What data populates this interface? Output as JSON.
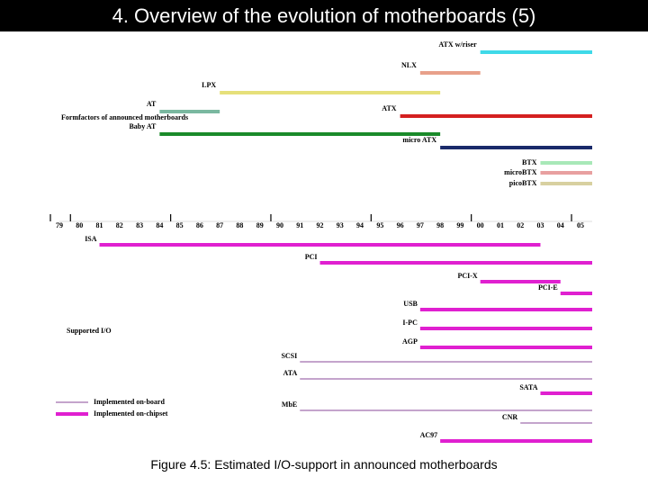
{
  "header": {
    "title": "4. Overview of the evolution of motherboards (5)"
  },
  "formfactors": {
    "heading": "Formfactors of announced motherboards",
    "bars": [
      {
        "label": "ATX w/riser",
        "color": "#3fd9e8",
        "start": 2000
      },
      {
        "label": "NLX",
        "color": "#e8a08a",
        "start": 1997,
        "end": 2000
      },
      {
        "label": "LPX",
        "color": "#e6e07a",
        "start": 1987,
        "end": 1998
      },
      {
        "label": "AT",
        "color": "#7ab8a0",
        "start": 1984,
        "end": 1987
      },
      {
        "label": "ATX",
        "color": "#d42020",
        "start": 1996
      },
      {
        "label": "Baby AT",
        "color": "#1a8a2a",
        "start": 1984,
        "end": 1998
      },
      {
        "label": "micro ATX",
        "color": "#1a2a6a",
        "start": 1998
      },
      {
        "label": "BTX",
        "color": "#a8e8b8",
        "start": 2003
      },
      {
        "label": "microBTX",
        "color": "#e8a0a0",
        "start": 2003
      },
      {
        "label": "picoBTX",
        "color": "#d8d0a0",
        "start": 2003
      }
    ]
  },
  "timeline": {
    "first_year": 1979,
    "labels": [
      "79",
      "80",
      "81",
      "82",
      "83",
      "84",
      "85",
      "86",
      "87",
      "88",
      "89",
      "90",
      "91",
      "92",
      "93",
      "94",
      "95",
      "96",
      "97",
      "98",
      "99",
      "00",
      "01",
      "02",
      "03",
      "04",
      "05"
    ]
  },
  "io": {
    "heading": "Supported I/O",
    "legend": [
      "Implemented on-board",
      "Implemented on-chipset"
    ],
    "bars": [
      {
        "label": "ISA",
        "start": 1981,
        "end": 2003,
        "kind": 1
      },
      {
        "label": "PCI",
        "start": 1992,
        "kind": 1
      },
      {
        "label": "PCI-X",
        "start": 2000,
        "end": 2004,
        "kind": 1
      },
      {
        "label": "PCI-E",
        "start": 2004,
        "kind": 1
      },
      {
        "label": "USB",
        "start": 1997,
        "kind": 1
      },
      {
        "label": "I-PC",
        "start": 1997,
        "kind": 1
      },
      {
        "label": "AGP",
        "start": 1997,
        "kind": 1
      },
      {
        "label": "SCSI",
        "start": 1991,
        "kind": 0
      },
      {
        "label": "ATA",
        "start": 1991,
        "kind": 0
      },
      {
        "label": "SATA",
        "start": 2003,
        "kind": 1
      },
      {
        "label": "MbE",
        "start": 1991,
        "kind": 0
      },
      {
        "label": "CNR",
        "start": 2002,
        "kind": 0
      },
      {
        "label": "AC97",
        "start": 1998,
        "kind": 1
      }
    ]
  },
  "caption": "Figure 4.5: Estimated I/O-support in announced motherboards"
}
